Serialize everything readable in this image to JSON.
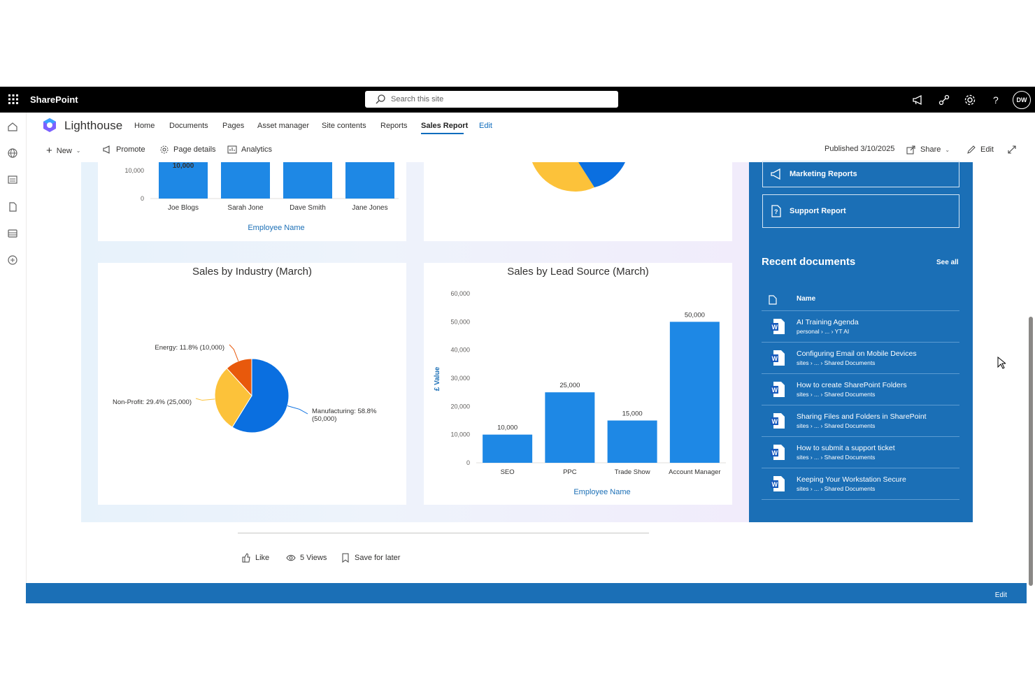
{
  "suite": {
    "app_name": "SharePoint",
    "search_placeholder": "Search this site",
    "avatar_initials": "DW"
  },
  "site": {
    "title": "Lighthouse",
    "nav": [
      "Home",
      "Documents",
      "Pages",
      "Asset manager",
      "Site contents",
      "Reports",
      "Sales Report",
      "Edit"
    ],
    "active_nav": "Sales Report"
  },
  "commandbar": {
    "new": "New",
    "promote": "Promote",
    "page_details": "Page details",
    "analytics": "Analytics",
    "published": "Published 3/10/2025",
    "share": "Share",
    "edit": "Edit"
  },
  "side_panel": {
    "links": [
      "Marketing Reports",
      "Support Report"
    ],
    "recent_title": "Recent documents",
    "see_all": "See all",
    "column_name": "Name",
    "docs": [
      {
        "title": "AI Training Agenda",
        "path": "personal › ... › YT AI"
      },
      {
        "title": "Configuring Email on Mobile Devices",
        "path": "sites › ... › Shared Documents"
      },
      {
        "title": "How to create SharePoint Folders",
        "path": "sites › ... › Shared Documents"
      },
      {
        "title": "Sharing Files and Folders in SharePoint",
        "path": "sites › ... › Shared Documents"
      },
      {
        "title": "How to submit a support ticket",
        "path": "sites › ... › Shared Documents"
      },
      {
        "title": "Keeping Your Workstation Secure",
        "path": "sites › ... › Shared Documents"
      }
    ]
  },
  "footer": {
    "like": "Like",
    "views": "5 Views",
    "save": "Save for later",
    "bottom_edit": "Edit"
  },
  "colors": {
    "bar": "#1e88e5",
    "pie_blue": "#0a6fe0",
    "pie_yellow": "#fcc23a",
    "pie_orange": "#e8590c",
    "panel": "#1b6fb6",
    "accent": "#0f6cbd"
  },
  "chart_data": [
    {
      "type": "bar",
      "partial": true,
      "categories": [
        "Joe Blogs",
        "Sarah Jone",
        "Dave Smith",
        "Jane Jones"
      ],
      "ytick_labels": [
        "10,000",
        "0"
      ],
      "data_labels": [
        "10,000"
      ],
      "xlabel": "Employee Name"
    },
    {
      "type": "pie",
      "title": "Sales by Industry (March)",
      "slices": [
        {
          "label": "Manufacturing: 58.8% (50,000)",
          "value": 50000
        },
        {
          "label": "Non-Profit: 29.4% (25,000)",
          "value": 25000
        },
        {
          "label": "Energy: 11.8% (10,000)",
          "value": 10000
        }
      ]
    },
    {
      "type": "bar",
      "title": "Sales by Lead Source (March)",
      "categories": [
        "SEO",
        "PPC",
        "Trade Show",
        "Account Manager"
      ],
      "values": [
        10000,
        25000,
        15000,
        50000
      ],
      "data_labels": [
        "10,000",
        "25,000",
        "15,000",
        "50,000"
      ],
      "ytick_labels": [
        "60,000",
        "50,000",
        "40,000",
        "30,000",
        "20,000",
        "10,000",
        "0"
      ],
      "ylim": [
        0,
        60000
      ],
      "xlabel": "Employee Name",
      "ylabel": "£ Value"
    }
  ]
}
